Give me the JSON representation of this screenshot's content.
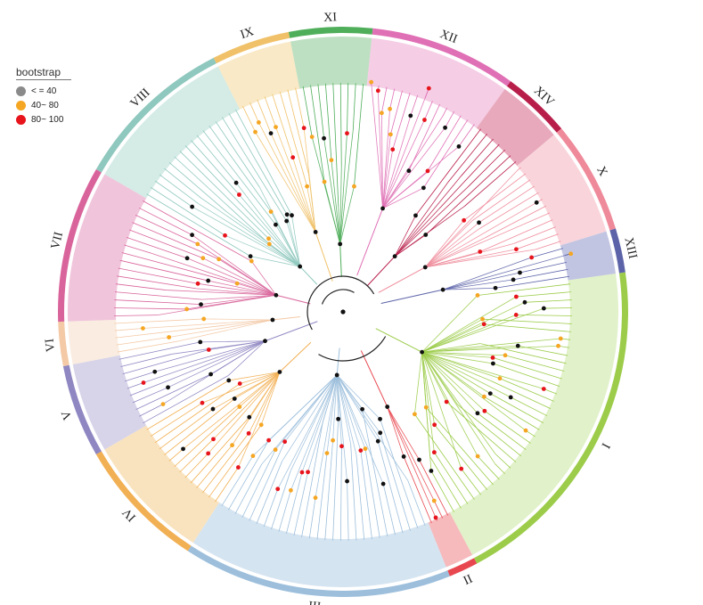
{
  "legend": {
    "title": "bootstrap",
    "items": [
      {
        "label": "< = 40",
        "color": "#8a8a8a"
      },
      {
        "label": "40~ 80",
        "color": "#f5a623"
      },
      {
        "label": "80~ 100",
        "color": "#e8141c"
      }
    ]
  },
  "clades": [
    {
      "label": "I",
      "color": "#9ccc4a",
      "band": "#d7ecb7"
    },
    {
      "label": "II",
      "color": "#e8474f",
      "band": "#f3a1a5"
    },
    {
      "label": "III",
      "color": "#9dbfdc",
      "band": "#c7dbec"
    },
    {
      "label": "IV",
      "color": "#f2b054",
      "band": "#f7d9a8"
    },
    {
      "label": "V",
      "color": "#8f87c2",
      "band": "#c9c5e2"
    },
    {
      "label": "VI",
      "color": "#f3c9a6",
      "band": "#f8e6d6"
    },
    {
      "label": "VII",
      "color": "#d9649b",
      "band": "#ebb2cf"
    },
    {
      "label": "VIII",
      "color": "#8fc8be",
      "band": "#c6e4de"
    },
    {
      "label": "IX",
      "color": "#f0c169",
      "band": "#f7e1b3"
    },
    {
      "label": "XI",
      "color": "#4fae5a",
      "band": "#a8d6ad"
    },
    {
      "label": "XII",
      "color": "#e070b5",
      "band": "#f1bcdc"
    },
    {
      "label": "XIV",
      "color": "#b81e4a",
      "band": "#e08ca6"
    },
    {
      "label": "X",
      "color": "#ef8a9a",
      "band": "#f7c7cf"
    },
    {
      "label": "XIII",
      "color": "#5c63a8",
      "band": "#aeb1d8"
    }
  ],
  "colors": {
    "backbone": "#222222",
    "dot_low": "#8a8a8a",
    "dot_mid": "#f5a623",
    "dot_high": "#e8141c",
    "dot_black": "#111111"
  }
}
